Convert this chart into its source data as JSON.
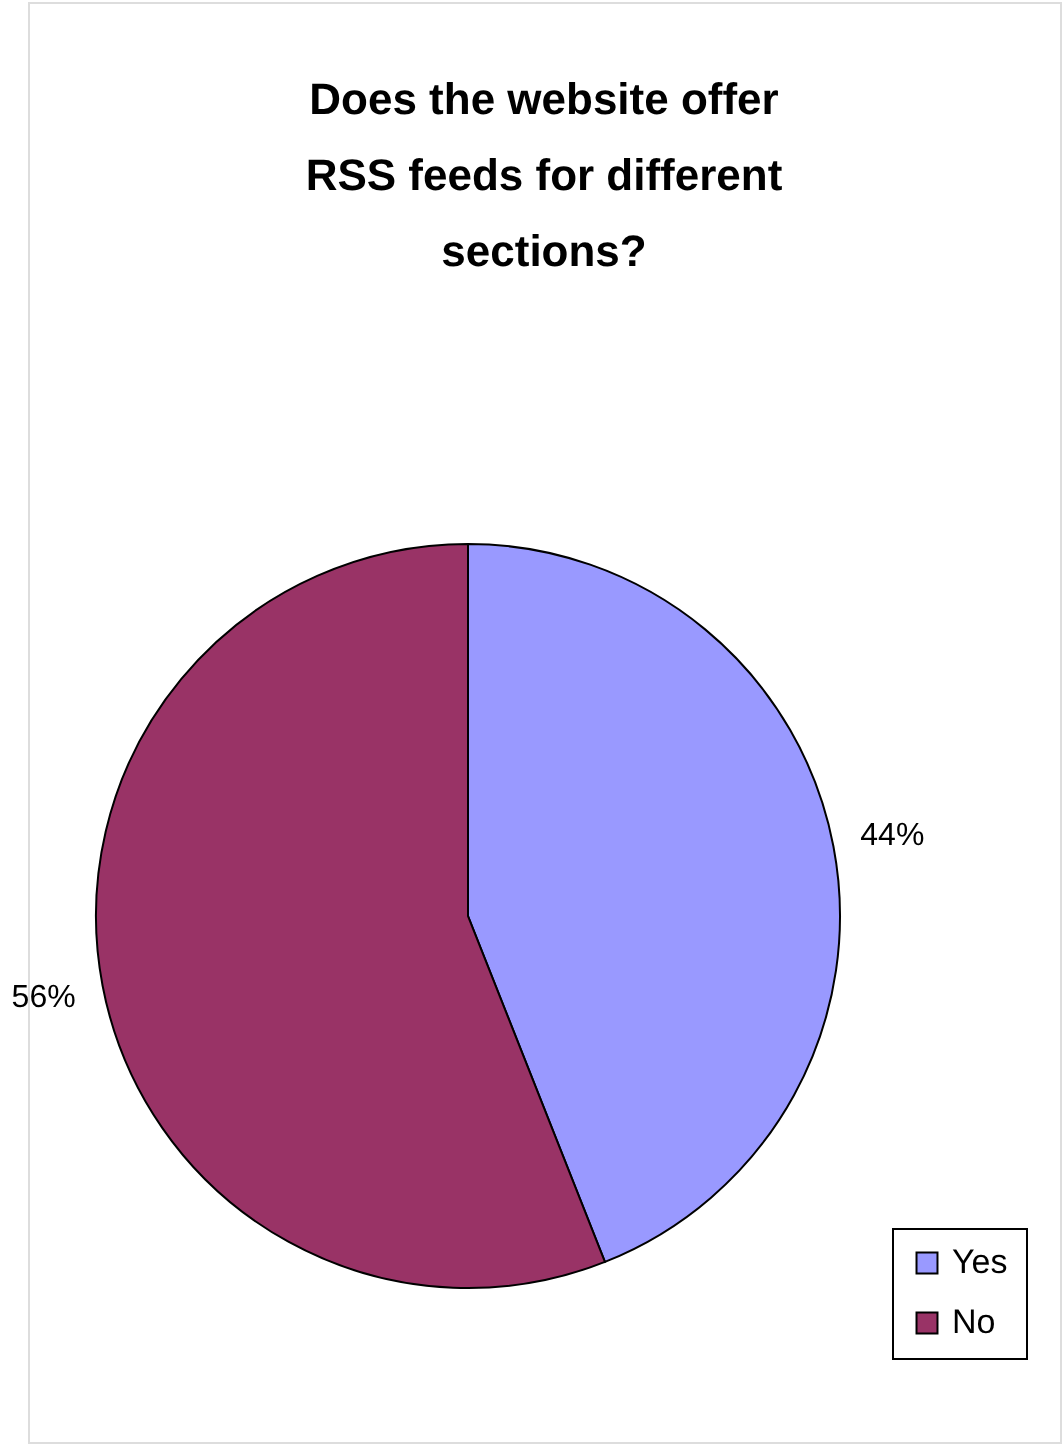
{
  "chart_data": {
    "type": "pie",
    "title": "Does the website offer RSS feeds for different sections?",
    "categories": [
      "Yes",
      "No"
    ],
    "values": [
      44,
      56
    ],
    "colors": [
      "#9999ff",
      "#993366"
    ],
    "value_labels": [
      "44%",
      "56%"
    ],
    "legend": "bottom right"
  }
}
